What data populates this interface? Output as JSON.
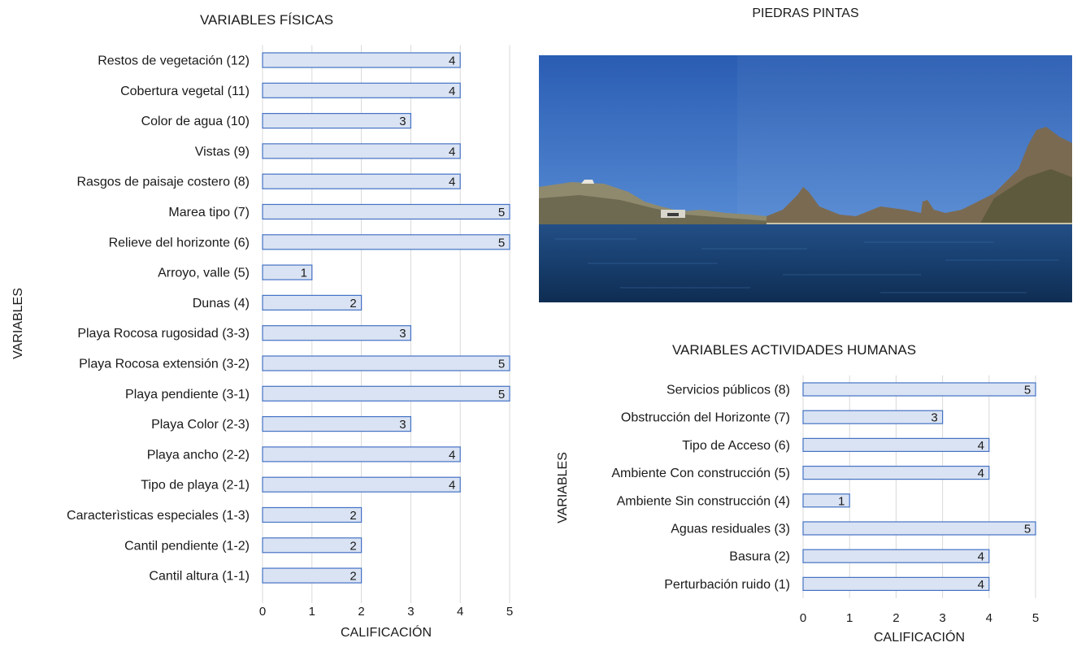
{
  "photo": {
    "title": "PIEDRAS PINTAS"
  },
  "chart_data": [
    {
      "type": "bar",
      "orientation": "horizontal",
      "title": "VARIABLES FÍSICAS",
      "xlabel": "CALIFICACIÓN",
      "ylabel": "VARIABLES",
      "xlim": [
        0,
        5
      ],
      "xticks": [
        0,
        1,
        2,
        3,
        4,
        5
      ],
      "grid": true,
      "bar_fill": "#dae3f3",
      "bar_stroke": "#4472c4",
      "categories": [
        "Restos de vegetación (12)",
        "Cobertura vegetal (11)",
        "Color de agua (10)",
        "Vistas (9)",
        "Rasgos de paisaje costero (8)",
        "Marea tipo (7)",
        "Relieve del horizonte (6)",
        "Arroyo, valle (5)",
        "Dunas (4)",
        "Playa Rocosa rugosidad (3-3)",
        "Playa Rocosa extensión (3-2)",
        "Playa pendiente (3-1)",
        "Playa Color (2-3)",
        "Playa ancho (2-2)",
        "Tipo de playa (2-1)",
        "Caracterìsticas especiales (1-3)",
        "Cantil pendiente (1-2)",
        "Cantil altura (1-1)"
      ],
      "values": [
        4,
        4,
        3,
        4,
        4,
        5,
        5,
        1,
        2,
        3,
        5,
        5,
        3,
        4,
        4,
        2,
        2,
        2
      ]
    },
    {
      "type": "bar",
      "orientation": "horizontal",
      "title": "VARIABLES ACTIVIDADES HUMANAS",
      "xlabel": "CALIFICACIÓN",
      "ylabel": "VARIABLES",
      "xlim": [
        0,
        5
      ],
      "xticks": [
        0,
        1,
        2,
        3,
        4,
        5
      ],
      "grid": true,
      "bar_fill": "#dae3f3",
      "bar_stroke": "#4472c4",
      "categories": [
        "Servicios públicos (8)",
        "Obstrucción del Horizonte (7)",
        "Tipo de Acceso (6)",
        "Ambiente Con construcción (5)",
        "Ambiente Sin construcción (4)",
        "Aguas residuales (3)",
        "Basura (2)",
        "Perturbación ruido (1)"
      ],
      "values": [
        5,
        3,
        4,
        4,
        1,
        5,
        4,
        4
      ]
    }
  ]
}
